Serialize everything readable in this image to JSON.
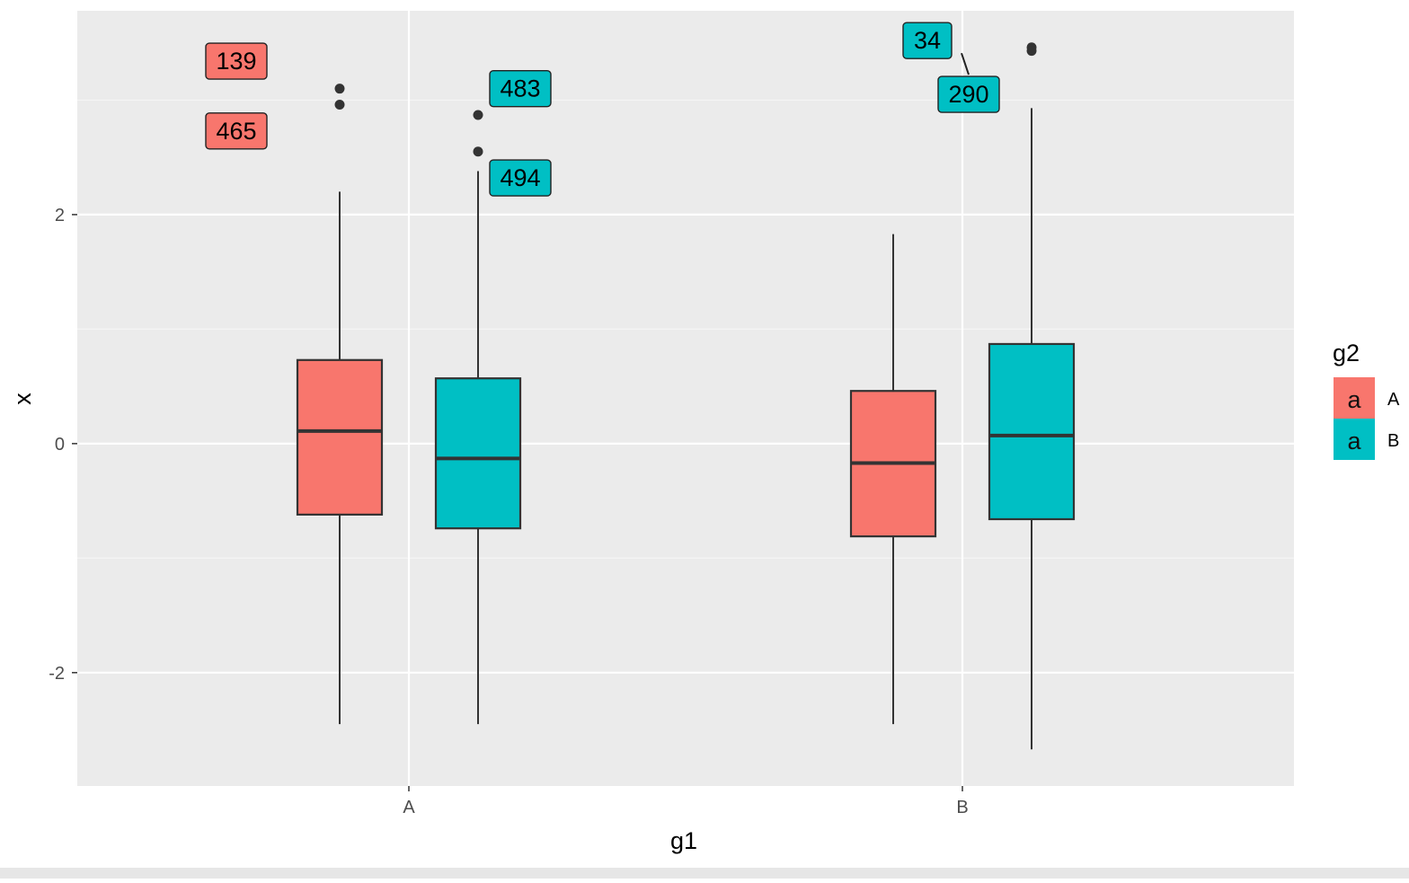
{
  "chart_data": {
    "type": "box",
    "title": "",
    "xlabel": "g1",
    "ylabel": "x",
    "categories": [
      "A",
      "B"
    ],
    "ylim": [
      -2.99,
      3.78
    ],
    "yticks": [
      -2,
      0,
      2
    ],
    "ytick_labels": [
      "-2",
      "0",
      "2"
    ],
    "grid": true,
    "legend": {
      "title": "g2",
      "placement": "right",
      "key_glyph": "a",
      "entries": [
        {
          "label": "A",
          "color": "#F8766D"
        },
        {
          "label": "B",
          "color": "#00BFC4"
        }
      ]
    },
    "series": [
      {
        "name": "A",
        "color": "#F8766D",
        "boxes": [
          {
            "category": "A",
            "whisker_low": -2.45,
            "q1": -0.62,
            "median": 0.11,
            "q3": 0.73,
            "whisker_high": 2.2,
            "outliers": [
              3.1,
              2.96
            ],
            "labels": [
              {
                "text": "139",
                "y": 3.34,
                "side": "left"
              },
              {
                "text": "465",
                "y": 2.73,
                "side": "left"
              }
            ]
          },
          {
            "category": "B",
            "whisker_low": -2.45,
            "q1": -0.81,
            "median": -0.17,
            "q3": 0.46,
            "whisker_high": 1.83,
            "outliers": [],
            "labels": []
          }
        ]
      },
      {
        "name": "B",
        "color": "#00BFC4",
        "boxes": [
          {
            "category": "A",
            "whisker_low": -2.45,
            "q1": -0.74,
            "median": -0.13,
            "q3": 0.57,
            "whisker_high": 2.38,
            "outliers": [
              2.87,
              2.55
            ],
            "labels": [
              {
                "text": "483",
                "y": 3.1,
                "side": "right"
              },
              {
                "text": "494",
                "y": 2.32,
                "side": "right"
              }
            ]
          },
          {
            "category": "B",
            "whisker_low": -2.67,
            "q1": -0.66,
            "median": 0.07,
            "q3": 0.87,
            "whisker_high": 2.93,
            "outliers": [
              3.46,
              3.43
            ],
            "labels": [
              {
                "text": "34",
                "y": 3.52,
                "side": "left"
              },
              {
                "text": "290",
                "y": 3.05,
                "side": "left"
              }
            ]
          }
        ]
      }
    ]
  }
}
